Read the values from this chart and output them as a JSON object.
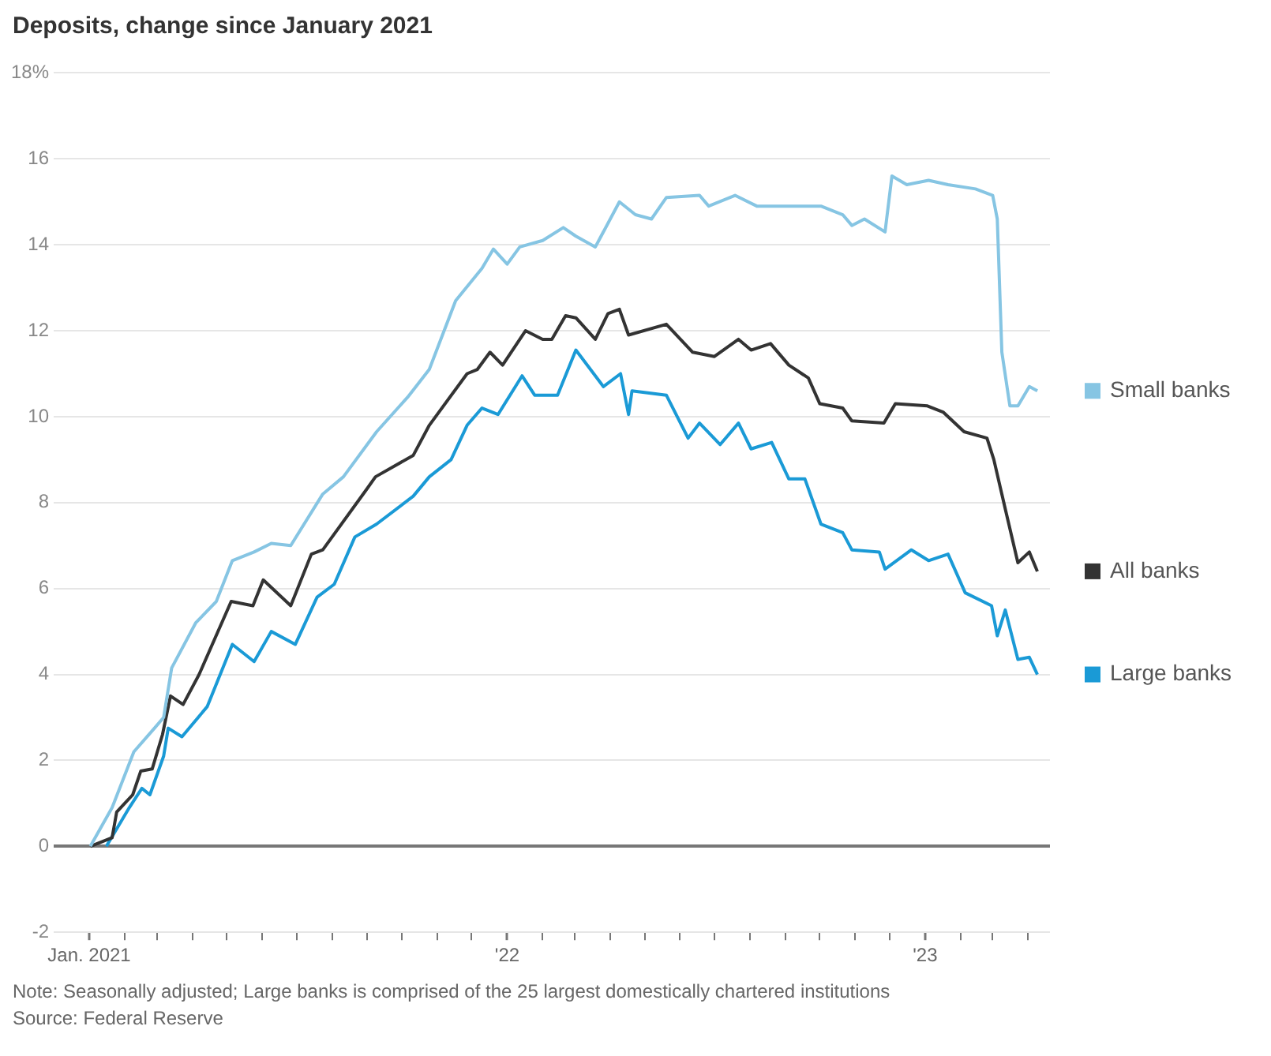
{
  "chart_data": {
    "type": "line",
    "title": "Deposits, change since January 2021",
    "annotations": [
      "Note: Seasonally adjusted; Large banks is comprised of the 25 largest domestically chartered institutions",
      "Source: Federal Reserve"
    ],
    "xlim": [
      "2020-12-01",
      "2023-04-20"
    ],
    "xticks": [
      {
        "value": "2021-01",
        "label": "Jan. 2021"
      },
      {
        "value": "2021-02",
        "label": null
      },
      {
        "value": "2021-03",
        "label": null
      },
      {
        "value": "2021-04",
        "label": null
      },
      {
        "value": "2021-05",
        "label": null
      },
      {
        "value": "2021-06",
        "label": null
      },
      {
        "value": "2021-07",
        "label": null
      },
      {
        "value": "2021-08",
        "label": null
      },
      {
        "value": "2021-09",
        "label": null
      },
      {
        "value": "2021-10",
        "label": null
      },
      {
        "value": "2021-11",
        "label": null
      },
      {
        "value": "2021-12",
        "label": null
      },
      {
        "value": "2022-01",
        "label": "'22"
      },
      {
        "value": "2022-02",
        "label": null
      },
      {
        "value": "2022-03",
        "label": null
      },
      {
        "value": "2022-04",
        "label": null
      },
      {
        "value": "2022-05",
        "label": null
      },
      {
        "value": "2022-06",
        "label": null
      },
      {
        "value": "2022-07",
        "label": null
      },
      {
        "value": "2022-08",
        "label": null
      },
      {
        "value": "2022-09",
        "label": null
      },
      {
        "value": "2022-10",
        "label": null
      },
      {
        "value": "2022-11",
        "label": null
      },
      {
        "value": "2022-12",
        "label": null
      },
      {
        "value": "2023-01",
        "label": "'23"
      },
      {
        "value": "2023-02",
        "label": null
      },
      {
        "value": "2023-03",
        "label": null
      },
      {
        "value": "2023-04",
        "label": null
      }
    ],
    "ylim": [
      -2,
      18
    ],
    "yticks": [
      -2,
      0,
      2,
      4,
      6,
      8,
      10,
      12,
      14,
      16,
      {
        "value": 18,
        "label": "18%"
      }
    ],
    "grid": "y",
    "legend": "right",
    "marker": "none",
    "line_style": "solid",
    "series": [
      {
        "name": "Small banks",
        "color": "#86c5e3",
        "x": [
          "2021-01-02",
          "2021-01-21",
          "2021-02-09",
          "2021-02-27",
          "2021-03-07",
          "2021-03-14",
          "2021-04-04",
          "2021-04-22",
          "2021-05-06",
          "2021-05-25",
          "2021-06-09",
          "2021-06-26",
          "2021-07-24",
          "2021-08-11",
          "2021-09-09",
          "2021-10-06",
          "2021-10-25",
          "2021-11-17",
          "2021-12-10",
          "2021-12-20",
          "2022-01-01",
          "2022-01-12",
          "2022-02-01",
          "2022-02-19",
          "2022-03-02",
          "2022-03-19",
          "2022-04-09",
          "2022-04-23",
          "2022-05-07",
          "2022-05-20",
          "2022-06-18",
          "2022-06-26",
          "2022-07-19",
          "2022-08-07",
          "2022-09-04",
          "2022-10-02",
          "2022-10-21",
          "2022-10-29",
          "2022-11-09",
          "2022-11-27",
          "2022-12-03",
          "2022-12-16",
          "2023-01-04",
          "2023-01-21",
          "2023-02-14",
          "2023-03-01",
          "2023-03-05",
          "2023-03-09",
          "2023-03-16",
          "2023-03-23",
          "2023-04-02",
          "2023-04-09"
        ],
        "values": [
          0,
          0.9,
          2.2,
          2.75,
          3.0,
          4.15,
          5.2,
          5.7,
          6.65,
          6.85,
          7.05,
          7.0,
          8.2,
          8.6,
          9.65,
          10.45,
          11.1,
          12.7,
          13.45,
          13.9,
          13.55,
          13.95,
          14.1,
          14.4,
          14.2,
          13.95,
          15.0,
          14.7,
          14.6,
          15.1,
          15.15,
          14.9,
          15.15,
          14.9,
          14.9,
          14.9,
          14.7,
          14.45,
          14.6,
          14.3,
          15.6,
          15.4,
          15.5,
          15.4,
          15.3,
          15.15,
          14.6,
          11.5,
          10.25,
          10.25,
          10.7,
          10.6
        ]
      },
      {
        "name": "All banks",
        "color": "#333333",
        "x": [
          "2021-01-02",
          "2021-01-21",
          "2021-01-25",
          "2021-02-08",
          "2021-02-15",
          "2021-02-25",
          "2021-03-06",
          "2021-03-13",
          "2021-03-24",
          "2021-04-07",
          "2021-05-05",
          "2021-05-24",
          "2021-06-02",
          "2021-06-26",
          "2021-07-14",
          "2021-07-24",
          "2021-08-31",
          "2021-09-08",
          "2021-10-11",
          "2021-10-25",
          "2021-11-27",
          "2021-12-06",
          "2021-12-17",
          "2021-12-28",
          "2022-01-17",
          "2022-02-01",
          "2022-02-09",
          "2022-02-21",
          "2022-03-02",
          "2022-03-19",
          "2022-03-30",
          "2022-04-09",
          "2022-04-17",
          "2022-05-20",
          "2022-06-12",
          "2022-07-01",
          "2022-07-22",
          "2022-08-02",
          "2022-08-19",
          "2022-09-04",
          "2022-09-21",
          "2022-10-01",
          "2022-10-21",
          "2022-10-29",
          "2022-11-26",
          "2022-12-06",
          "2023-01-03",
          "2023-01-17",
          "2023-02-04",
          "2023-02-24",
          "2023-03-02",
          "2023-03-12",
          "2023-03-23",
          "2023-04-02",
          "2023-04-09"
        ],
        "values": [
          0,
          0.2,
          0.8,
          1.2,
          1.75,
          1.8,
          2.6,
          3.5,
          3.3,
          4.0,
          5.7,
          5.6,
          6.2,
          5.6,
          6.8,
          6.9,
          8.3,
          8.6,
          9.1,
          9.8,
          11.0,
          11.1,
          11.5,
          11.2,
          12.0,
          11.8,
          11.8,
          12.35,
          12.3,
          11.8,
          12.4,
          12.5,
          11.9,
          12.15,
          11.5,
          11.4,
          11.8,
          11.55,
          11.7,
          11.2,
          10.9,
          10.3,
          10.2,
          9.9,
          9.85,
          10.3,
          10.25,
          10.1,
          9.65,
          9.5,
          9.0,
          7.85,
          6.6,
          6.85,
          6.4
        ]
      },
      {
        "name": "Large banks",
        "color": "#1a9ad6",
        "x": [
          "2021-01-16",
          "2021-02-05",
          "2021-02-16",
          "2021-02-23",
          "2021-03-07",
          "2021-03-11",
          "2021-03-23",
          "2021-04-14",
          "2021-05-06",
          "2021-05-25",
          "2021-06-09",
          "2021-06-30",
          "2021-07-19",
          "2021-08-03",
          "2021-08-21",
          "2021-09-09",
          "2021-10-11",
          "2021-10-25",
          "2021-11-13",
          "2021-11-27",
          "2021-12-10",
          "2021-12-24",
          "2022-01-14",
          "2022-01-25",
          "2022-02-14",
          "2022-03-02",
          "2022-03-26",
          "2022-04-10",
          "2022-04-17",
          "2022-04-20",
          "2022-05-20",
          "2022-06-08",
          "2022-06-18",
          "2022-07-06",
          "2022-07-22",
          "2022-08-02",
          "2022-08-20",
          "2022-09-04",
          "2022-09-18",
          "2022-10-02",
          "2022-10-21",
          "2022-10-29",
          "2022-11-22",
          "2022-11-27",
          "2022-12-20",
          "2023-01-04",
          "2023-01-21",
          "2023-02-05",
          "2023-02-28",
          "2023-03-05",
          "2023-03-12",
          "2023-03-23",
          "2023-04-02",
          "2023-04-09"
        ],
        "values": [
          0,
          0.9,
          1.35,
          1.2,
          2.1,
          2.75,
          2.55,
          3.25,
          4.7,
          4.3,
          5.0,
          4.7,
          5.8,
          6.1,
          7.2,
          7.5,
          8.15,
          8.6,
          9.0,
          9.8,
          10.2,
          10.05,
          10.95,
          10.5,
          10.5,
          11.55,
          10.7,
          11.0,
          10.05,
          10.6,
          10.5,
          9.5,
          9.85,
          9.35,
          9.85,
          9.25,
          9.4,
          8.55,
          8.55,
          7.5,
          7.3,
          6.9,
          6.85,
          6.45,
          6.9,
          6.65,
          6.8,
          5.9,
          5.6,
          4.9,
          5.5,
          4.35,
          4.4,
          4.0
        ]
      }
    ]
  }
}
